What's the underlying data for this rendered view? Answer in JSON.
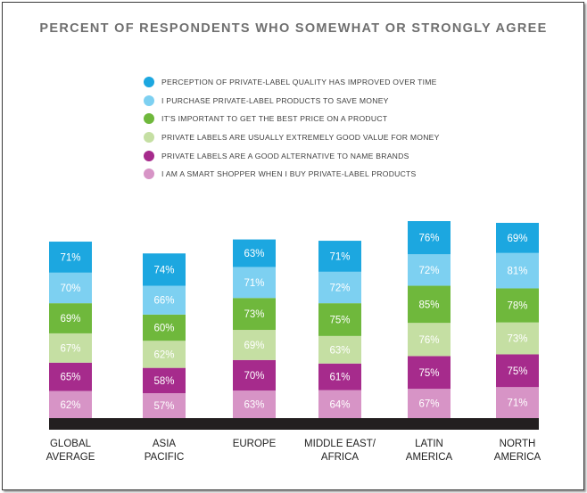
{
  "chart_data": {
    "type": "bar",
    "title": "PERCENT OF RESPONDENTS WHO SOMEWHAT OR STRONGLY AGREE",
    "stacked": true,
    "categories": [
      "GLOBAL AVERAGE",
      "ASIA PACIFIC",
      "EUROPE",
      "MIDDLE EAST/ AFRICA",
      "LATIN AMERICA",
      "NORTH AMERICA"
    ],
    "category_lines": [
      [
        "GLOBAL",
        "AVERAGE"
      ],
      [
        "ASIA",
        "PACIFIC"
      ],
      [
        "EUROPE"
      ],
      [
        "MIDDLE EAST/",
        "AFRICA"
      ],
      [
        "LATIN",
        "AMERICA"
      ],
      [
        "NORTH",
        "AMERICA"
      ]
    ],
    "series": [
      {
        "name": "I AM A SMART SHOPPER WHEN I BUY PRIVATE-LABEL PRODUCTS",
        "color": "#d794c6",
        "values": [
          62,
          57,
          63,
          64,
          67,
          71
        ]
      },
      {
        "name": "PRIVATE LABELS ARE A GOOD ALTERNATIVE TO NAME BRANDS",
        "color": "#a62b8c",
        "values": [
          65,
          58,
          70,
          61,
          75,
          75
        ]
      },
      {
        "name": "PRIVATE LABELS ARE USUALLY EXTREMELY GOOD VALUE FOR MONEY",
        "color": "#c5dfa3",
        "values": [
          67,
          62,
          69,
          63,
          76,
          73
        ]
      },
      {
        "name": "IT'S IMPORTANT TO GET THE BEST PRICE ON A PRODUCT",
        "color": "#6fb83c",
        "values": [
          69,
          60,
          73,
          75,
          85,
          78
        ]
      },
      {
        "name": "I PURCHASE PRIVATE-LABEL PRODUCTS TO SAVE MONEY",
        "color": "#7dd0f1",
        "values": [
          70,
          66,
          71,
          72,
          72,
          81
        ]
      },
      {
        "name": "PERCEPTION OF PRIVATE-LABEL QUALITY HAS IMPROVED OVER TIME",
        "color": "#1ca7e0",
        "values": [
          71,
          74,
          63,
          71,
          76,
          69
        ]
      }
    ],
    "value_suffix": "%",
    "baseline_color": "#231f20",
    "legend": {
      "position": "top",
      "order": [
        "PERCEPTION OF PRIVATE-LABEL QUALITY HAS IMPROVED OVER TIME",
        "I PURCHASE PRIVATE-LABEL PRODUCTS TO SAVE MONEY",
        "IT'S IMPORTANT TO GET THE BEST PRICE ON A PRODUCT",
        "PRIVATE LABELS ARE USUALLY EXTREMELY GOOD VALUE FOR MONEY",
        "PRIVATE LABELS ARE A GOOD ALTERNATIVE TO NAME BRANDS",
        "I AM A SMART SHOPPER WHEN I BUY PRIVATE-LABEL PRODUCTS"
      ],
      "colors": [
        "#1ca7e0",
        "#7dd0f1",
        "#6fb83c",
        "#c5dfa3",
        "#a62b8c",
        "#d794c6"
      ]
    },
    "grid": false
  }
}
